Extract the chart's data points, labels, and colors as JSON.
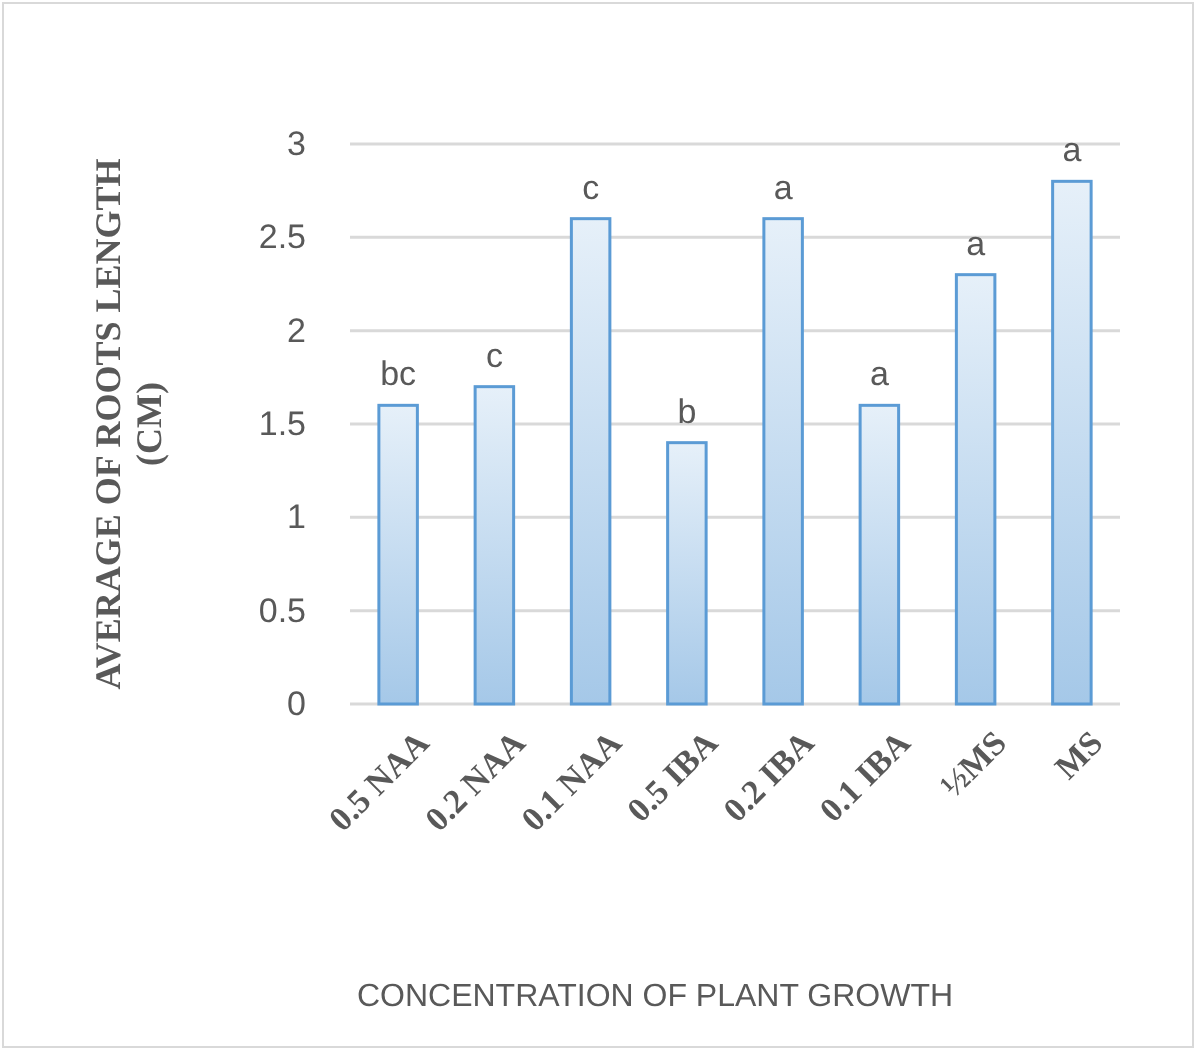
{
  "chart_data": {
    "type": "bar",
    "categories": [
      "0.5 NAA",
      "0.2 NAA",
      "0.1 NAA",
      "0.5 IBA",
      "0.2 IBA",
      "0.1 IBA",
      "½MS",
      "MS"
    ],
    "values": [
      1.6,
      1.7,
      2.6,
      1.4,
      2.6,
      1.6,
      2.3,
      2.8
    ],
    "color": "#5b9bd5",
    "xlabel": "CONCENTRATION OF PLANT GROWTH",
    "ylabel": "AVERAGE OF ROOTS LENGTH (CM)",
    "ylim": [
      0,
      3
    ],
    "yticks": [
      0,
      0.5,
      1,
      1.5,
      2,
      2.5,
      3
    ],
    "grid": "y",
    "annotations": [
      {
        "text": "bc",
        "x": "0.5 NAA",
        "y": 1.6
      },
      {
        "text": "c",
        "x": "0.2 NAA",
        "y": 1.7
      },
      {
        "text": "c",
        "x": "0.1 NAA",
        "y": 2.6
      },
      {
        "text": "b",
        "x": "0.5 IBA",
        "y": 1.4
      },
      {
        "text": "a",
        "x": "0.2 IBA",
        "y": 2.6
      },
      {
        "text": "a",
        "x": "0.1 IBA",
        "y": 1.6
      },
      {
        "text": "a",
        "x": "½MS",
        "y": 2.3
      },
      {
        "text": "a",
        "x": "MS",
        "y": 2.8
      }
    ]
  }
}
